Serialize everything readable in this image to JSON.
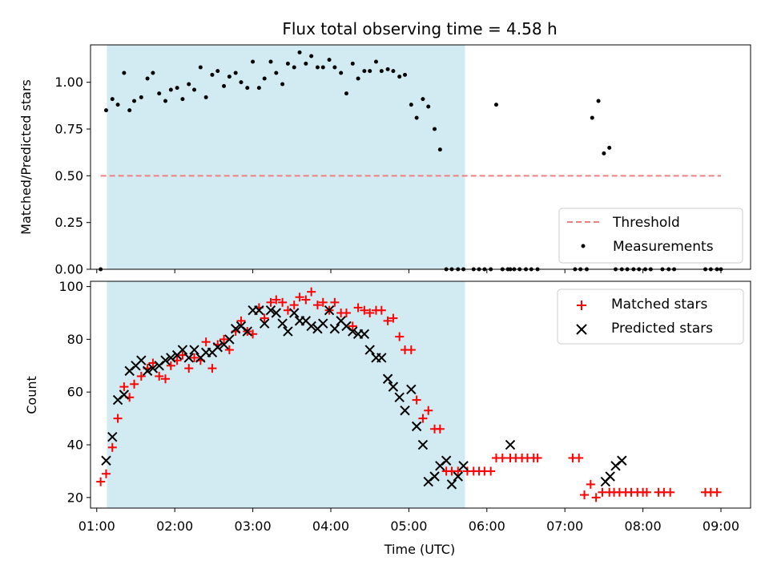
{
  "figure": {
    "title": "Flux total observing time = 4.58 h",
    "xlabel": "Time (UTC)"
  },
  "colors": {
    "shade": "#add8e6",
    "threshold": "#f08080",
    "matched": "#ff0000",
    "predicted": "#000000",
    "measurement": "#000000"
  },
  "chart_data": [
    {
      "type": "scatter",
      "panel": "top",
      "ylabel": "Matched/Predicted stars",
      "xlim": [
        0.92,
        9.38
      ],
      "ylim": [
        0,
        1.2
      ],
      "x_ticks": [
        1,
        2,
        3,
        4,
        5,
        6,
        7,
        8,
        9
      ],
      "x_tick_labels": [
        "01:00",
        "02:00",
        "03:00",
        "04:00",
        "05:00",
        "06:00",
        "07:00",
        "08:00",
        "09:00"
      ],
      "y_ticks": [
        0,
        0.25,
        0.5,
        0.75,
        1.0
      ],
      "y_tick_labels": [
        "0.00",
        "0.25",
        "0.50",
        "0.75",
        "1.00"
      ],
      "grid": false,
      "legend_position": "lower-right",
      "shaded_interval": [
        1.13,
        5.72
      ],
      "threshold": {
        "name": "Threshold",
        "value": 0.5,
        "x_range": [
          1.05,
          9.0
        ],
        "style": "dashed"
      },
      "series": [
        {
          "name": "Measurements",
          "x": [
            1.05,
            1.12,
            1.2,
            1.27,
            1.35,
            1.42,
            1.48,
            1.57,
            1.65,
            1.72,
            1.8,
            1.88,
            1.95,
            2.03,
            2.1,
            2.18,
            2.25,
            2.33,
            2.4,
            2.48,
            2.55,
            2.63,
            2.7,
            2.78,
            2.85,
            2.93,
            3.0,
            3.08,
            3.15,
            3.23,
            3.3,
            3.38,
            3.45,
            3.53,
            3.6,
            3.68,
            3.75,
            3.83,
            3.9,
            3.98,
            4.05,
            4.13,
            4.2,
            4.28,
            4.35,
            4.43,
            4.5,
            4.58,
            4.65,
            4.73,
            4.8,
            4.88,
            4.95,
            5.03,
            5.1,
            5.18,
            5.25,
            5.33,
            5.4,
            5.48,
            5.55,
            5.63,
            5.7,
            5.83,
            5.9,
            5.97,
            6.05,
            6.12,
            6.2,
            6.27,
            6.3,
            6.35,
            6.42,
            6.5,
            6.57,
            6.65,
            7.13,
            7.2,
            7.28,
            7.35,
            7.43,
            7.5,
            7.57,
            7.65,
            7.73,
            7.8,
            7.88,
            7.95,
            8.03,
            8.1,
            8.25,
            8.33,
            8.4,
            8.8,
            8.87,
            8.95,
            9.0
          ],
          "y": [
            0,
            0.85,
            0.91,
            0.88,
            1.05,
            0.85,
            0.9,
            0.92,
            1.02,
            1.05,
            0.94,
            0.9,
            0.96,
            0.97,
            0.91,
            0.99,
            0.96,
            1.08,
            0.92,
            1.04,
            1.06,
            0.98,
            1.03,
            1.05,
            1.0,
            0.97,
            1.11,
            0.97,
            1.02,
            1.11,
            1.05,
            0.99,
            1.1,
            1.08,
            1.16,
            1.1,
            1.14,
            1.08,
            1.08,
            1.12,
            1.08,
            1.05,
            0.94,
            1.1,
            1.02,
            1.06,
            1.06,
            1.11,
            1.06,
            1.07,
            1.06,
            1.03,
            1.04,
            0.88,
            0.81,
            0.91,
            0.87,
            0.75,
            0.64,
            0,
            0,
            0,
            0,
            0,
            0,
            0,
            0,
            0.88,
            0,
            0,
            0,
            0,
            0,
            0,
            0,
            0,
            0,
            0,
            0,
            0.81,
            0.9,
            0.62,
            0.65,
            0,
            0,
            0,
            0,
            0,
            0,
            0,
            0,
            0,
            0,
            0,
            0,
            0,
            0
          ]
        }
      ]
    },
    {
      "type": "scatter",
      "panel": "bottom",
      "ylabel": "Count",
      "xlabel": "Time (UTC)",
      "xlim": [
        0.92,
        9.38
      ],
      "ylim": [
        16,
        102
      ],
      "x_ticks": [
        1,
        2,
        3,
        4,
        5,
        6,
        7,
        8,
        9
      ],
      "x_tick_labels": [
        "01:00",
        "02:00",
        "03:00",
        "04:00",
        "05:00",
        "06:00",
        "07:00",
        "08:00",
        "09:00"
      ],
      "y_ticks": [
        20,
        40,
        60,
        80,
        100
      ],
      "y_tick_labels": [
        "20",
        "40",
        "60",
        "80",
        "100"
      ],
      "grid": false,
      "legend_position": "upper-right",
      "shaded_interval": [
        1.13,
        5.72
      ],
      "series": [
        {
          "name": "Matched stars",
          "marker": "plus",
          "x": [
            1.05,
            1.12,
            1.2,
            1.27,
            1.35,
            1.42,
            1.48,
            1.57,
            1.65,
            1.72,
            1.8,
            1.88,
            1.95,
            2.03,
            2.1,
            2.18,
            2.25,
            2.33,
            2.4,
            2.48,
            2.55,
            2.63,
            2.7,
            2.78,
            2.85,
            2.93,
            3.0,
            3.08,
            3.15,
            3.23,
            3.3,
            3.38,
            3.45,
            3.53,
            3.6,
            3.68,
            3.75,
            3.83,
            3.9,
            3.98,
            4.05,
            4.13,
            4.2,
            4.28,
            4.35,
            4.43,
            4.5,
            4.58,
            4.65,
            4.73,
            4.8,
            4.88,
            4.95,
            5.03,
            5.1,
            5.18,
            5.25,
            5.33,
            5.4,
            5.48,
            5.55,
            5.63,
            5.75,
            5.83,
            5.9,
            5.97,
            6.05,
            6.12,
            6.2,
            6.3,
            6.37,
            6.45,
            6.52,
            6.6,
            6.65,
            7.1,
            7.18,
            7.25,
            7.33,
            7.4,
            7.48,
            7.57,
            7.63,
            7.7,
            7.78,
            7.85,
            7.93,
            8.0,
            8.05,
            8.2,
            8.27,
            8.35,
            8.8,
            8.87,
            8.95
          ],
          "y": [
            26,
            29,
            39,
            50,
            62,
            58,
            63,
            66,
            69,
            71,
            66,
            65,
            70,
            72,
            74,
            69,
            73,
            72,
            79,
            69,
            78,
            80,
            76,
            83,
            87,
            83,
            82,
            92,
            88,
            94,
            95,
            94,
            91,
            93,
            96,
            95,
            98,
            93,
            94,
            91,
            94,
            90,
            90,
            85,
            92,
            91,
            90,
            91,
            91,
            87,
            88,
            81,
            76,
            76,
            57,
            50,
            53,
            46,
            46,
            30,
            30,
            30,
            30,
            30,
            30,
            30,
            30,
            35,
            35,
            35,
            35,
            35,
            35,
            35,
            35,
            35,
            35,
            21,
            25,
            20,
            22,
            22,
            22,
            22,
            22,
            22,
            22,
            22,
            22,
            22,
            22,
            22,
            22,
            22,
            22
          ]
        },
        {
          "name": "Predicted stars",
          "marker": "x",
          "x": [
            1.12,
            1.2,
            1.27,
            1.35,
            1.42,
            1.5,
            1.57,
            1.65,
            1.72,
            1.8,
            1.88,
            1.95,
            2.03,
            2.1,
            2.18,
            2.25,
            2.33,
            2.4,
            2.48,
            2.55,
            2.63,
            2.7,
            2.78,
            2.85,
            2.93,
            3.0,
            3.08,
            3.15,
            3.23,
            3.3,
            3.38,
            3.45,
            3.53,
            3.6,
            3.68,
            3.75,
            3.83,
            3.9,
            3.98,
            4.05,
            4.13,
            4.2,
            4.28,
            4.35,
            4.43,
            4.5,
            4.58,
            4.65,
            4.73,
            4.8,
            4.88,
            4.95,
            5.03,
            5.1,
            5.18,
            5.25,
            5.33,
            5.4,
            5.48,
            5.55,
            5.63,
            5.7,
            6.3,
            7.52,
            7.58,
            7.65,
            7.73
          ],
          "y": [
            34,
            43,
            57,
            59,
            68,
            70,
            72,
            68,
            69,
            70,
            72,
            73,
            74,
            76,
            73,
            76,
            73,
            75,
            75,
            77,
            78,
            80,
            84,
            85,
            83,
            91,
            91,
            86,
            91,
            90,
            86,
            83,
            90,
            87,
            87,
            85,
            84,
            86,
            91,
            84,
            87,
            85,
            83,
            82,
            82,
            76,
            73,
            73,
            65,
            62,
            58,
            53,
            61,
            47,
            40,
            26,
            28,
            32,
            34,
            25,
            28,
            32,
            40,
            26,
            28,
            32,
            34
          ]
        }
      ]
    }
  ],
  "legends": {
    "top": [
      "Threshold",
      "Measurements"
    ],
    "bottom": [
      "Matched stars",
      "Predicted stars"
    ]
  }
}
